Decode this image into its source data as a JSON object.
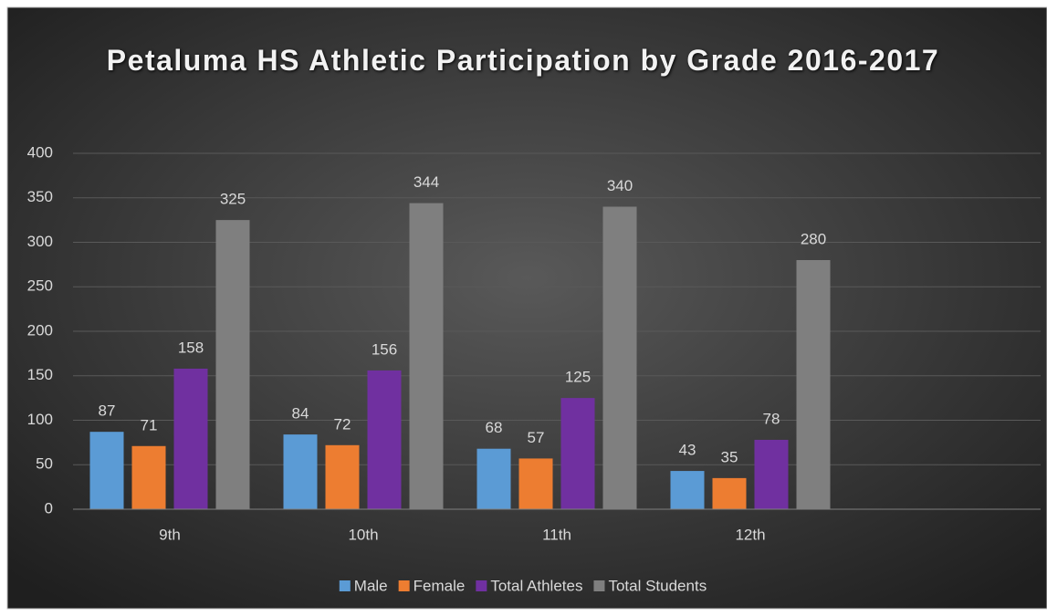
{
  "chart_data": {
    "type": "bar",
    "title": "Petaluma HS Athletic Participation by Grade 2016-2017",
    "categories": [
      "9th",
      "10th",
      "11th",
      "12th",
      null
    ],
    "series": [
      {
        "name": "Male",
        "color": "#5b9bd5",
        "values": [
          87,
          84,
          68,
          43,
          null
        ]
      },
      {
        "name": "Female",
        "color": "#ed7d31",
        "values": [
          71,
          72,
          57,
          35,
          null
        ]
      },
      {
        "name": "Total Athletes",
        "color": "#7030a0",
        "values": [
          158,
          156,
          125,
          78,
          null
        ]
      },
      {
        "name": "Total Students",
        "color": "#7f7f7f",
        "values": [
          325,
          344,
          340,
          280,
          null
        ]
      }
    ],
    "ylim": [
      0,
      400
    ],
    "yticks": [
      0,
      50,
      100,
      150,
      200,
      250,
      300,
      350,
      400
    ],
    "grid": true,
    "legend": "bottom",
    "data_labels": true
  }
}
